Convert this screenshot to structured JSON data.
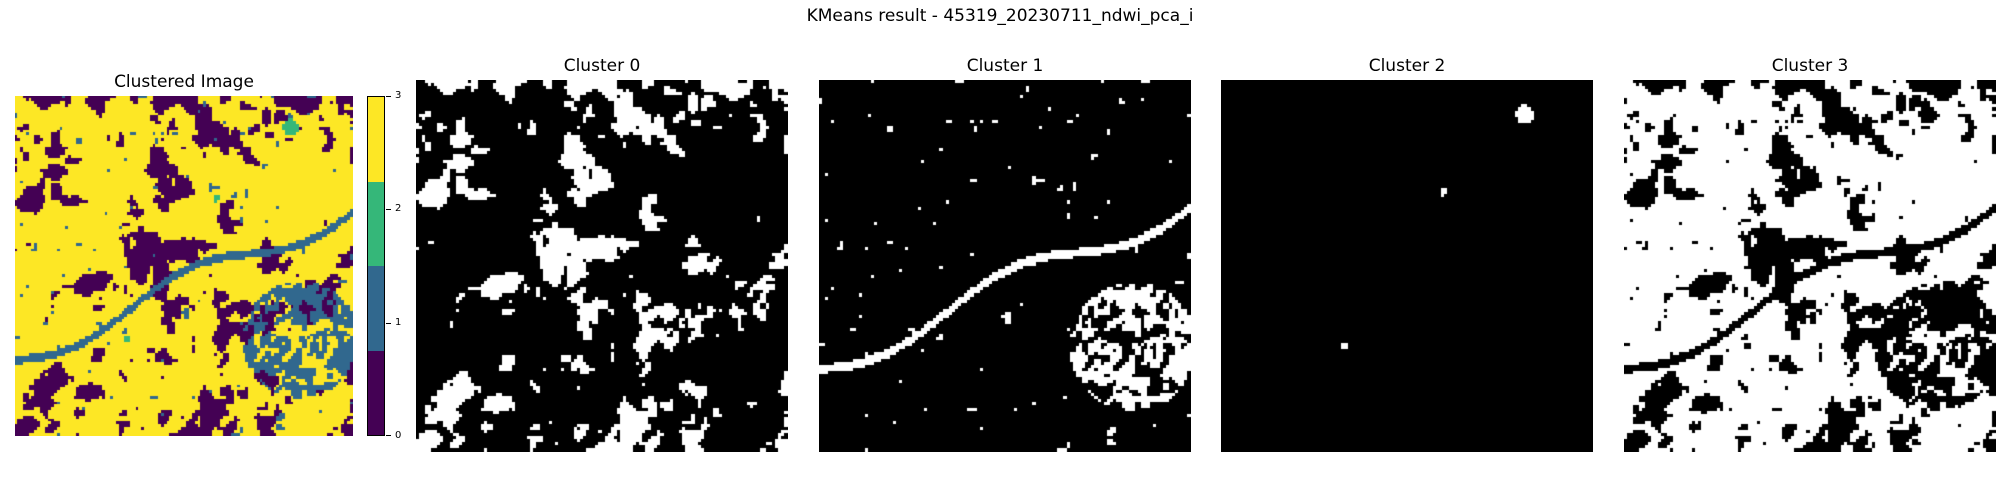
{
  "figure": {
    "suptitle": "KMeans result - 45319_20230711_ndwi_pca_i",
    "background": "#ffffff"
  },
  "panels": [
    {
      "title": "Clustered Image",
      "kind": "label-map"
    },
    {
      "title": "Cluster 0",
      "kind": "binary-mask",
      "cluster": 0
    },
    {
      "title": "Cluster 1",
      "kind": "binary-mask",
      "cluster": 1
    },
    {
      "title": "Cluster 2",
      "kind": "binary-mask",
      "cluster": 2
    },
    {
      "title": "Cluster 3",
      "kind": "binary-mask",
      "cluster": 3
    }
  ],
  "colorbar": {
    "ticks": [
      "3",
      "2",
      "1",
      "0"
    ],
    "colors": [
      "#fde725",
      "#35b779",
      "#31688e",
      "#440154"
    ]
  },
  "mask_colors": {
    "on": "#ffffff",
    "off": "#000000"
  }
}
